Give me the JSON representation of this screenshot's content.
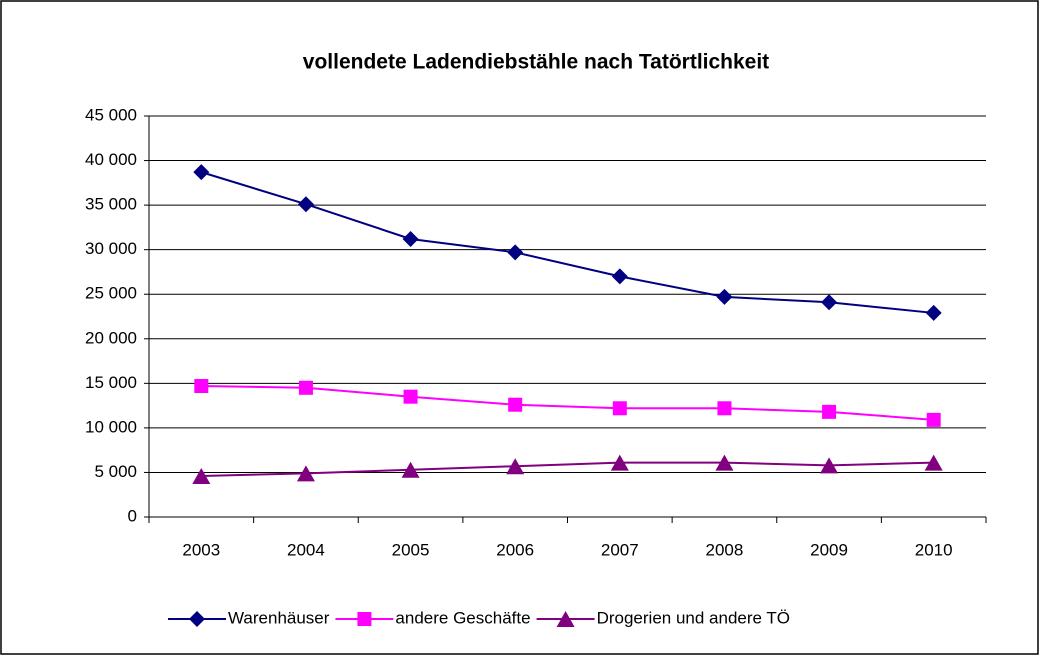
{
  "chart_data": {
    "type": "line",
    "title": "vollendete Ladendiebstähle nach Tatörtlichkeit",
    "categories": [
      "2003",
      "2004",
      "2005",
      "2006",
      "2007",
      "2008",
      "2009",
      "2010"
    ],
    "series": [
      {
        "name": "Warenhäuser",
        "color": "#000080",
        "marker": "diamond",
        "values": [
          38700,
          35100,
          31200,
          29700,
          27000,
          24700,
          24100,
          22900
        ]
      },
      {
        "name": "andere Geschäfte",
        "color": "#ff00ff",
        "marker": "square",
        "values": [
          14700,
          14500,
          13500,
          12600,
          12200,
          12200,
          11800,
          10900
        ]
      },
      {
        "name": "Drogerien und andere TÖ",
        "color": "#800080",
        "marker": "triangle",
        "values": [
          4600,
          4900,
          5300,
          5700,
          6100,
          6100,
          5800,
          6100
        ]
      }
    ],
    "ylim": [
      0,
      45000
    ],
    "yticks": [
      0,
      {
        "value": 5000,
        "label": "5 000"
      },
      {
        "value": 10000,
        "label": "10 000"
      },
      {
        "value": 15000,
        "label": "15 000"
      },
      {
        "value": 20000,
        "label": "20 000"
      },
      {
        "value": 25000,
        "label": "25 000"
      },
      {
        "value": 30000,
        "label": "30 000"
      },
      {
        "value": 35000,
        "label": "35 000"
      },
      {
        "value": 40000,
        "label": "40 000"
      },
      {
        "value": 45000,
        "label": "45 000"
      }
    ],
    "grid": true,
    "legend": "bottom"
  }
}
